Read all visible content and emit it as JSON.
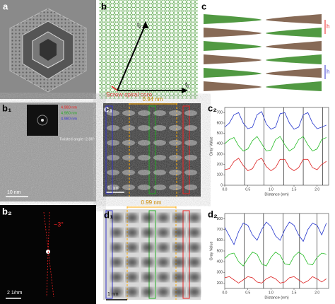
{
  "figure": {
    "a": {
      "label": "a"
    },
    "b": {
      "label": "b",
      "arrow_top": "t₂",
      "arrow_right": "t₁",
      "core": "Screw spiral core"
    },
    "c": {
      "label": "c",
      "height_top": "h",
      "height_bottom": "h"
    },
    "b1": {
      "label": "b₁",
      "d_red": "4.980 nm",
      "d_green": "4.980 nm",
      "d_blue": "4.980 nm",
      "twist": "Twisted angle~2.86°",
      "scale": "10 nm"
    },
    "c1": {
      "label": "c₁",
      "spacing": "0.94 nm",
      "scale": "1 nm"
    },
    "c2": {
      "label": "c₂"
    },
    "b2": {
      "label": "b₂",
      "angle": "~3°",
      "scale": "2 1/nm"
    },
    "d1": {
      "label": "d₁",
      "spacing": "0.99 nm",
      "scale": "1 nm"
    },
    "d2": {
      "label": "d₂"
    }
  },
  "chart_data": [
    {
      "type": "line",
      "x_label": "Distance (nm)",
      "y_label": "Gray Value",
      "x": [
        0,
        0.1,
        0.2,
        0.3,
        0.4,
        0.5,
        0.6,
        0.7,
        0.8,
        0.9,
        1.0,
        1.1,
        1.2,
        1.3,
        1.4,
        1.5,
        1.6,
        1.7,
        1.8,
        1.9,
        2.0,
        2.1,
        2.2
      ],
      "xlim": [
        0,
        2.25
      ],
      "xticks": [
        {
          "value": 0,
          "label": "0.0"
        },
        0.5,
        {
          "value": 1,
          "label": "1.0"
        },
        1.5,
        {
          "value": 2,
          "label": "2.0"
        }
      ],
      "ylim": [
        0,
        750
      ],
      "yticks": [
        0,
        100,
        200,
        300,
        400,
        500,
        600,
        700
      ],
      "vlines": [
        0.43,
        0.85,
        1.28,
        1.7,
        2.12
      ],
      "vline_color": "#000000",
      "series": [
        {
          "color": "#2233cc",
          "values": [
            560,
            600,
            680,
            700,
            600,
            545,
            560,
            680,
            710,
            590,
            540,
            560,
            690,
            700,
            600,
            540,
            560,
            680,
            700,
            600,
            545,
            560,
            580
          ]
        },
        {
          "color": "#22bb22",
          "values": [
            400,
            440,
            460,
            380,
            330,
            350,
            430,
            470,
            400,
            330,
            340,
            440,
            470,
            390,
            330,
            360,
            440,
            470,
            390,
            330,
            350,
            440,
            460
          ]
        },
        {
          "color": "#dd2222",
          "values": [
            150,
            160,
            230,
            260,
            190,
            140,
            160,
            240,
            260,
            180,
            140,
            170,
            250,
            250,
            170,
            140,
            170,
            250,
            250,
            170,
            150,
            200,
            230
          ]
        }
      ]
    },
    {
      "type": "line",
      "x_label": "Distance (nm)",
      "y_label": "Gray Value",
      "x": [
        0,
        0.1,
        0.2,
        0.3,
        0.4,
        0.5,
        0.6,
        0.7,
        0.8,
        0.9,
        1.0,
        1.1,
        1.2,
        1.3,
        1.4,
        1.5,
        1.6,
        1.7,
        1.8,
        1.9,
        2.0,
        2.1,
        2.2
      ],
      "xlim": [
        0,
        2.25
      ],
      "xticks": [
        {
          "value": 0,
          "label": "0.0"
        },
        0.5,
        {
          "value": 1,
          "label": "1.0"
        },
        1.5,
        {
          "value": 2,
          "label": "2.0"
        }
      ],
      "ylim": [
        150,
        850
      ],
      "yticks": [
        200,
        300,
        400,
        500,
        600,
        700,
        800
      ],
      "vlines": [
        0.42,
        0.84,
        1.26,
        1.62,
        2.0
      ],
      "vline_color": "#000000",
      "series": [
        {
          "color": "#2233cc",
          "values": [
            720,
            640,
            560,
            680,
            760,
            740,
            650,
            600,
            700,
            770,
            730,
            640,
            600,
            700,
            770,
            740,
            650,
            590,
            700,
            760,
            740,
            650,
            760
          ]
        },
        {
          "color": "#22bb22",
          "values": [
            430,
            470,
            480,
            400,
            360,
            430,
            490,
            470,
            380,
            360,
            440,
            490,
            460,
            380,
            370,
            450,
            490,
            460,
            380,
            370,
            440,
            480,
            470
          ]
        },
        {
          "color": "#dd2222",
          "values": [
            250,
            260,
            230,
            200,
            230,
            260,
            250,
            210,
            200,
            240,
            260,
            240,
            200,
            210,
            250,
            260,
            230,
            200,
            220,
            260,
            240,
            210,
            240
          ]
        }
      ]
    }
  ]
}
